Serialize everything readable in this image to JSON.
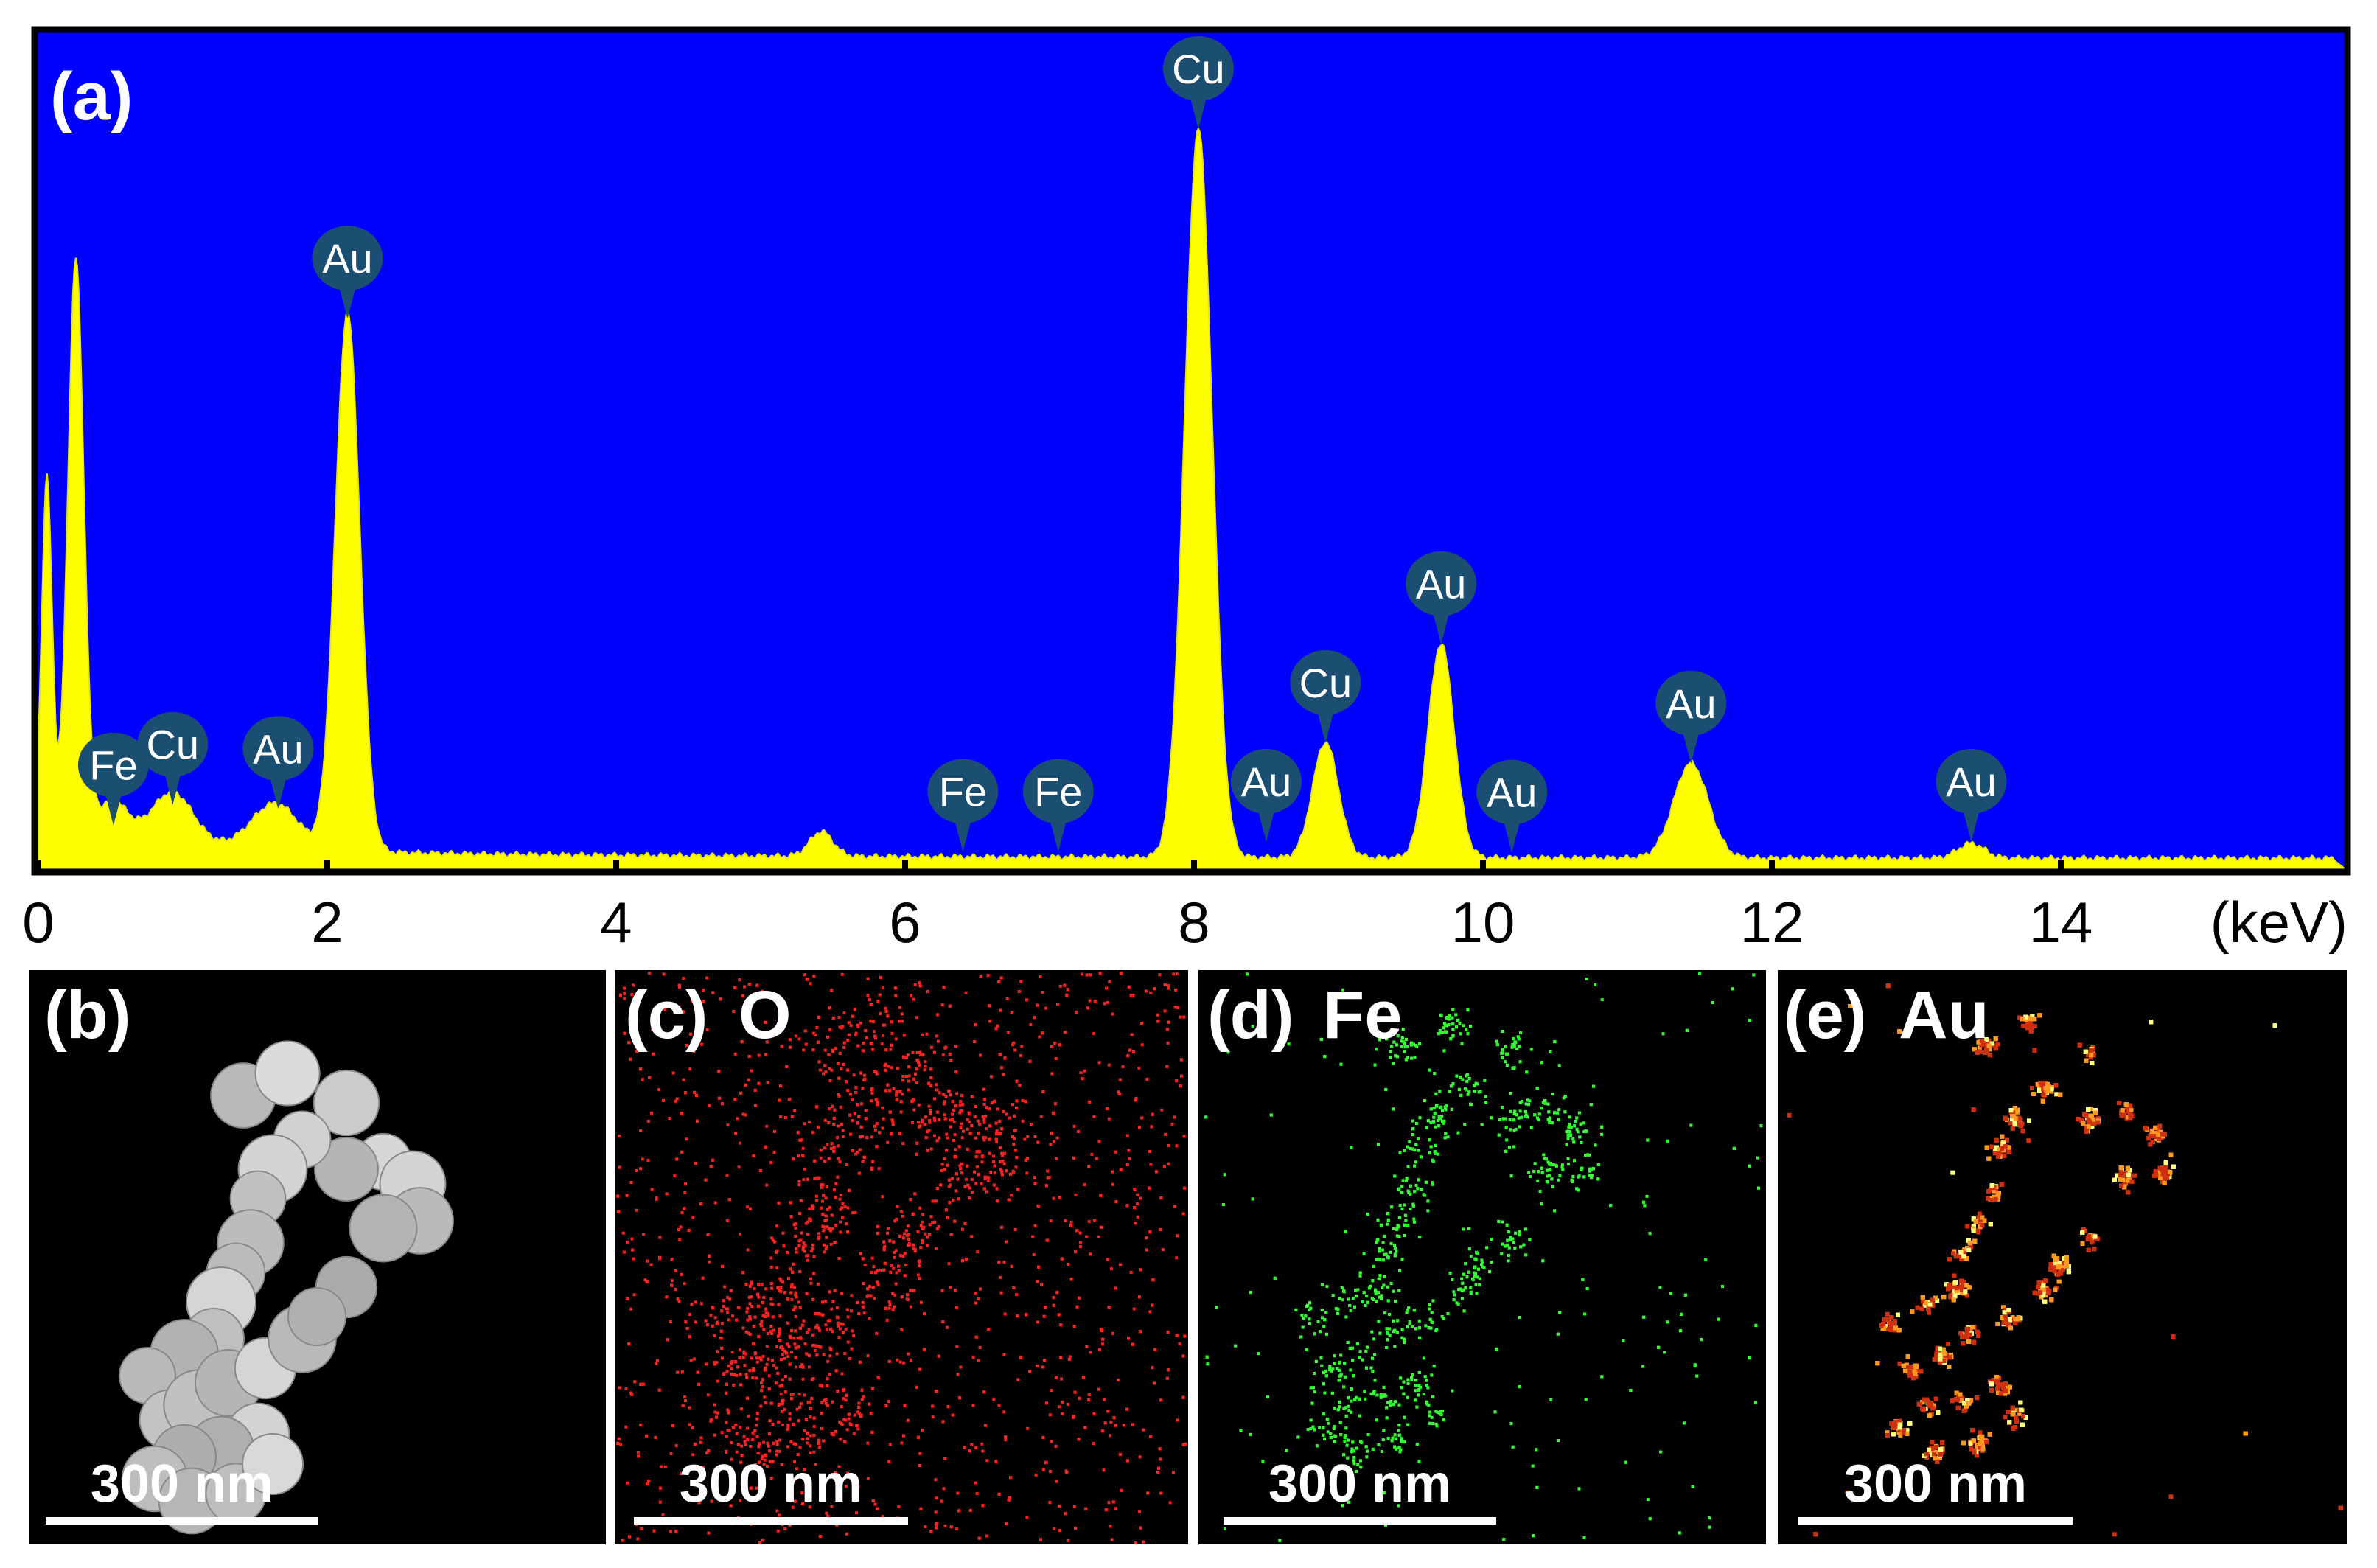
{
  "chart_data": {
    "type": "area",
    "panel_label": "(a)",
    "x_unit_label": "(keV)",
    "xlim": [
      0,
      15.9
    ],
    "ylim": [
      0,
      100
    ],
    "x_ticks": [
      0,
      2,
      4,
      6,
      8,
      10,
      12,
      14
    ],
    "colors": {
      "background": "#0000ff",
      "spectrum": "#ffff00",
      "peak_marker": "#1b4f72",
      "peak_marker_text": "#ffffff"
    },
    "peaks": [
      {
        "center": 0.06,
        "height": 42,
        "width": 0.035
      },
      {
        "center": 0.26,
        "height": 69,
        "width": 0.055
      },
      {
        "center": 0.52,
        "height": 4,
        "width": 0.1
      },
      {
        "center": 0.93,
        "height": 6,
        "width": 0.14
      },
      {
        "center": 1.64,
        "height": 5.5,
        "width": 0.16
      },
      {
        "center": 2.14,
        "height": 65.5,
        "width": 0.085
      },
      {
        "center": 5.42,
        "height": 3,
        "width": 0.08
      },
      {
        "center": 8.03,
        "height": 88.5,
        "width": 0.095
      },
      {
        "center": 8.91,
        "height": 14,
        "width": 0.09
      },
      {
        "center": 9.71,
        "height": 26,
        "width": 0.09
      },
      {
        "center": 11.44,
        "height": 11.5,
        "width": 0.12
      },
      {
        "center": 13.38,
        "height": 1.8,
        "width": 0.09
      }
    ],
    "peak_labels": [
      {
        "element": "Fe",
        "energy": 0.52,
        "value": 4.5
      },
      {
        "element": "Cu",
        "energy": 0.93,
        "value": 7
      },
      {
        "element": "Au",
        "energy": 1.66,
        "value": 6.5
      },
      {
        "element": "Au",
        "energy": 2.14,
        "value": 66
      },
      {
        "element": "Fe",
        "energy": 6.4,
        "value": 1.3
      },
      {
        "element": "Fe",
        "energy": 7.06,
        "value": 1.3
      },
      {
        "element": "Cu",
        "energy": 8.03,
        "value": 89
      },
      {
        "element": "Au",
        "energy": 8.5,
        "value": 2.5
      },
      {
        "element": "Cu",
        "energy": 8.91,
        "value": 14.5
      },
      {
        "element": "Au",
        "energy": 9.71,
        "value": 26.5
      },
      {
        "element": "Au",
        "energy": 10.2,
        "value": 1.2
      },
      {
        "element": "Au",
        "energy": 11.44,
        "value": 12
      },
      {
        "element": "Au",
        "energy": 13.38,
        "value": 2.5
      }
    ]
  },
  "maps": [
    {
      "panel_label": "(b)",
      "element": "",
      "scale_bar_text": "300 nm",
      "color": "#d0d0d0"
    },
    {
      "panel_label": "(c)",
      "element": "O",
      "scale_bar_text": "300 nm",
      "color": "#ff2020"
    },
    {
      "panel_label": "(d)",
      "element": "Fe",
      "scale_bar_text": "300 nm",
      "color": "#30ff30"
    },
    {
      "panel_label": "(e)",
      "element": "Au",
      "scale_bar_text": "300 nm",
      "color": "#ffa020"
    }
  ]
}
